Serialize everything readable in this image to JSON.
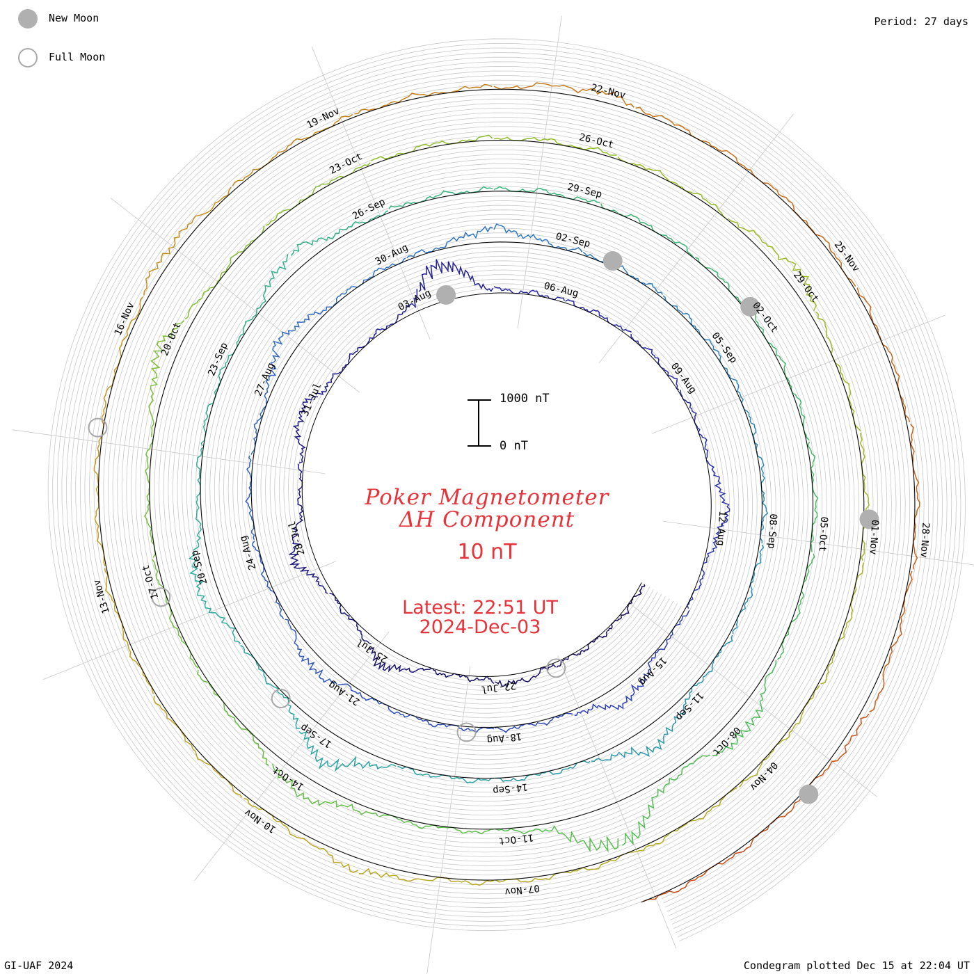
{
  "legend": {
    "new_moon_label": "New Moon",
    "full_moon_label": "Full Moon"
  },
  "period_label": "Period: 27 days",
  "credit": "GI-UAF 2024",
  "plotted_label": "Condegram plotted Dec 15 at 22:04 UT",
  "title": {
    "line1": "Poker Magnetometer",
    "line2": "ΔH Component",
    "resolution": "10 nT",
    "latest_time": "Latest: 22:51 UT",
    "latest_date": "2024-Dec-03"
  },
  "scale_bar": {
    "top_label": "1000 nT",
    "bottom_label": "0 nT",
    "value_nT": 1000
  },
  "colors": {
    "grid": "#c8c8c8",
    "spiral": "#000000",
    "title": "#e8323a",
    "new_moon": "#b0b0b0",
    "full_moon": "#a8a8a8"
  },
  "chart_data": {
    "type": "condegram-spiral",
    "period_days": 27,
    "start_date": "2024-07-18",
    "end_date": "2024-12-03",
    "series_value": "ΔH (nT)",
    "date_labels": [
      "22-Jul",
      "25-Jul",
      "28-Jul",
      "31-Jul",
      "03-Aug",
      "06-Aug",
      "09-Aug",
      "12-Aug",
      "15-Aug",
      "18-Aug",
      "21-Aug",
      "24-Aug",
      "27-Aug",
      "30-Aug",
      "02-Sep",
      "05-Sep",
      "08-Sep",
      "11-Sep",
      "14-Sep",
      "17-Sep",
      "20-Sep",
      "23-Sep",
      "26-Sep",
      "29-Sep",
      "02-Oct",
      "05-Oct",
      "08-Oct",
      "11-Oct",
      "14-Oct",
      "17-Oct",
      "20-Oct",
      "23-Oct",
      "26-Oct",
      "29-Oct",
      "01-Nov",
      "04-Nov",
      "07-Nov",
      "10-Nov",
      "13-Nov",
      "16-Nov",
      "19-Nov",
      "22-Nov",
      "25-Nov",
      "28-Nov"
    ],
    "new_moons": [
      "2024-08-04",
      "2024-09-03",
      "2024-10-02",
      "2024-11-01",
      "2024-12-01"
    ],
    "full_moons": [
      "2024-07-21",
      "2024-08-19",
      "2024-09-18",
      "2024-10-17",
      "2024-11-15"
    ],
    "daily_peak_deltaH_nT": [
      {
        "date": "2024-07-22",
        "value": 180
      },
      {
        "date": "2024-07-25",
        "value": 420
      },
      {
        "date": "2024-07-28",
        "value": 460
      },
      {
        "date": "2024-07-31",
        "value": 380
      },
      {
        "date": "2024-08-04",
        "value": 900
      },
      {
        "date": "2024-08-12",
        "value": 350
      },
      {
        "date": "2024-08-16",
        "value": 420
      },
      {
        "date": "2024-08-22",
        "value": 300
      },
      {
        "date": "2024-08-28",
        "value": 420
      },
      {
        "date": "2024-09-01",
        "value": 320
      },
      {
        "date": "2024-09-12",
        "value": 500
      },
      {
        "date": "2024-09-17",
        "value": 700
      },
      {
        "date": "2024-09-20",
        "value": 450
      },
      {
        "date": "2024-09-25",
        "value": 380
      },
      {
        "date": "2024-10-08",
        "value": 450
      },
      {
        "date": "2024-10-10",
        "value": 1000
      },
      {
        "date": "2024-10-14",
        "value": 420
      },
      {
        "date": "2024-10-20",
        "value": 420
      },
      {
        "date": "2024-10-29",
        "value": 320
      },
      {
        "date": "2024-11-09",
        "value": 250
      },
      {
        "date": "2024-11-17",
        "value": 200
      },
      {
        "date": "2024-11-22",
        "value": 180
      },
      {
        "date": "2024-11-30",
        "value": 150
      }
    ]
  }
}
